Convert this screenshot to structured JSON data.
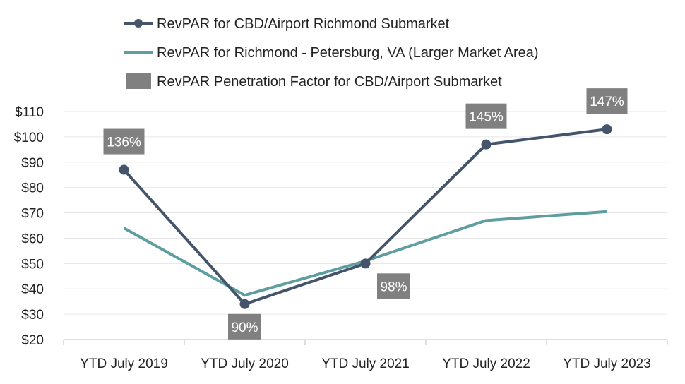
{
  "chart_data": {
    "type": "line",
    "title": "",
    "xlabel": "",
    "ylabel": "",
    "categories": [
      "YTD July 2019",
      "YTD July 2020",
      "YTD July 2021",
      "YTD July 2022",
      "YTD July 2023"
    ],
    "ylim": [
      20,
      110
    ],
    "yticks": [
      "$20",
      "$30",
      "$40",
      "$50",
      "$60",
      "$70",
      "$80",
      "$90",
      "$100",
      "$110"
    ],
    "ytick_values": [
      20,
      30,
      40,
      50,
      60,
      70,
      80,
      90,
      100,
      110
    ],
    "grid": true,
    "legend_position": "top",
    "series": [
      {
        "name": "RevPAR for CBD/Airport Richmond Submarket",
        "color": "#44546a",
        "marker": "circle",
        "values": [
          87,
          34,
          50,
          97,
          103
        ]
      },
      {
        "name": "RevPAR for Richmond - Petersburg, VA (Larger Market Area)",
        "color": "#5f9ea0",
        "marker": "none",
        "values": [
          64,
          37.5,
          51,
          67,
          70.5
        ]
      }
    ],
    "penetration": {
      "name": "RevPAR Penetration Factor for CBD/Airport Submarket",
      "color": "#808080",
      "labels": [
        "136%",
        "90%",
        "98%",
        "145%",
        "147%"
      ]
    }
  }
}
